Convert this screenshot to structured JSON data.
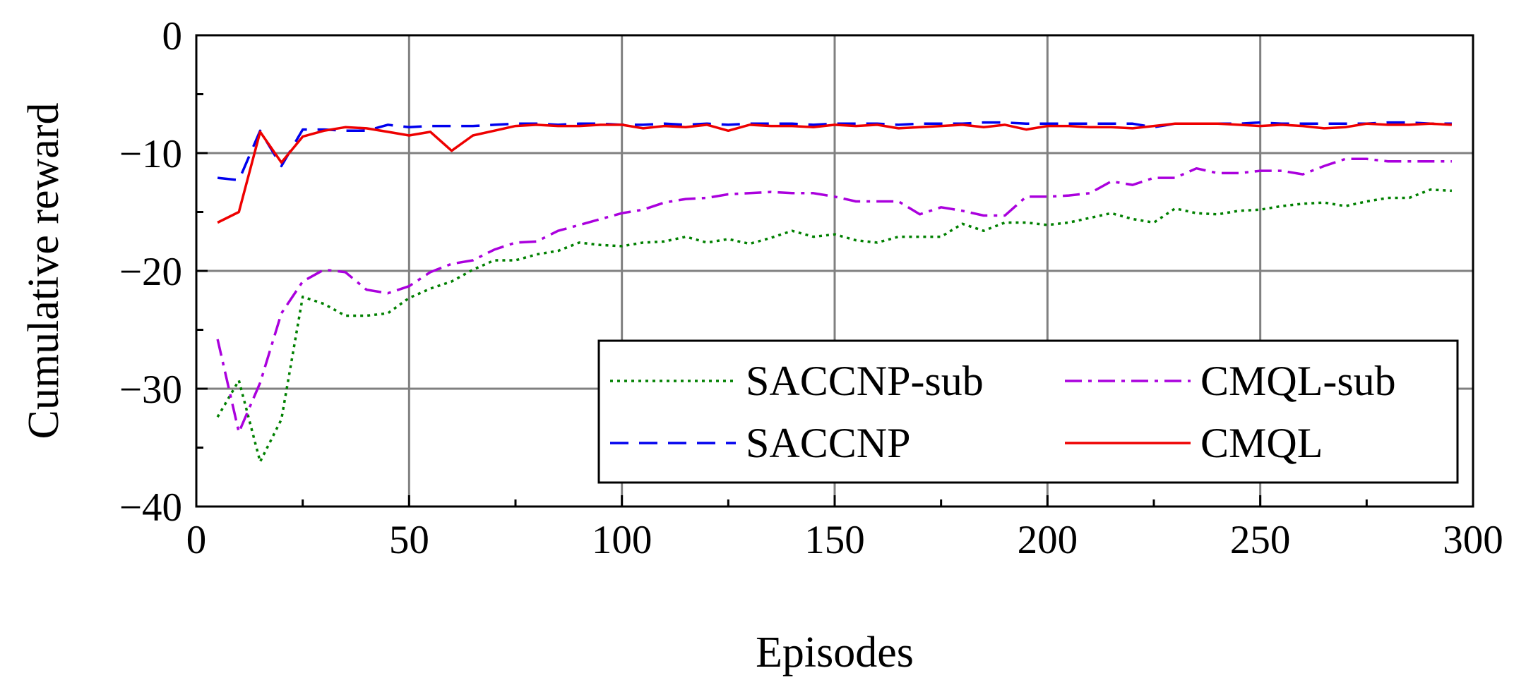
{
  "chart_data": {
    "type": "line",
    "title": "",
    "xlabel": "Episodes",
    "ylabel": "Cumulative reward",
    "xlim": [
      0,
      300
    ],
    "ylim": [
      -40,
      0
    ],
    "xticks": [
      0,
      50,
      100,
      150,
      200,
      250,
      300
    ],
    "yticks": [
      0,
      -10,
      -20,
      -30,
      -40
    ],
    "xtick_labels": [
      "0",
      "50",
      "100",
      "150",
      "200",
      "250",
      "300"
    ],
    "ytick_labels": [
      "0",
      "−10",
      "−20",
      "−30",
      "−40"
    ],
    "grid": true,
    "legend_position": "bottom-right",
    "series": [
      {
        "name": "SACCNP-sub",
        "color": "#008000",
        "style": "dotted",
        "x": [
          5,
          10,
          15,
          20,
          25,
          30,
          35,
          40,
          45,
          50,
          55,
          60,
          65,
          70,
          75,
          80,
          85,
          90,
          95,
          100,
          105,
          110,
          115,
          120,
          125,
          130,
          135,
          140,
          145,
          150,
          155,
          160,
          165,
          170,
          175,
          180,
          185,
          190,
          195,
          200,
          205,
          210,
          215,
          220,
          225,
          230,
          235,
          240,
          245,
          250,
          255,
          260,
          265,
          270,
          275,
          280,
          285,
          290,
          295
        ],
        "y": [
          -32.4,
          -29.3,
          -36.2,
          -32.6,
          -22.2,
          -22.8,
          -23.8,
          -23.8,
          -23.6,
          -22.3,
          -21.5,
          -20.9,
          -19.9,
          -19.1,
          -19.1,
          -18.6,
          -18.3,
          -17.6,
          -17.8,
          -17.9,
          -17.6,
          -17.5,
          -17.1,
          -17.6,
          -17.3,
          -17.7,
          -17.2,
          -16.6,
          -17.1,
          -16.9,
          -17.4,
          -17.6,
          -17.1,
          -17.1,
          -17.1,
          -16.0,
          -16.6,
          -15.9,
          -15.9,
          -16.1,
          -15.9,
          -15.5,
          -15.1,
          -15.6,
          -15.9,
          -14.7,
          -15.1,
          -15.2,
          -14.9,
          -14.8,
          -14.5,
          -14.3,
          -14.2,
          -14.5,
          -14.1,
          -13.8,
          -13.8,
          -13.1,
          -13.2
        ]
      },
      {
        "name": "CMQL-sub",
        "color": "#aa00dd",
        "style": "dashdot",
        "x": [
          5,
          10,
          15,
          20,
          25,
          30,
          35,
          40,
          45,
          50,
          55,
          60,
          65,
          70,
          75,
          80,
          85,
          90,
          95,
          100,
          105,
          110,
          115,
          120,
          125,
          130,
          135,
          140,
          145,
          150,
          155,
          160,
          165,
          170,
          175,
          180,
          185,
          190,
          195,
          200,
          205,
          210,
          215,
          220,
          225,
          230,
          235,
          240,
          245,
          250,
          255,
          260,
          265,
          270,
          275,
          280,
          285,
          290,
          295
        ],
        "y": [
          -25.8,
          -33.7,
          -29.5,
          -23.6,
          -20.9,
          -19.9,
          -20.1,
          -21.6,
          -21.9,
          -21.3,
          -20.1,
          -19.4,
          -19.1,
          -18.2,
          -17.6,
          -17.5,
          -16.6,
          -16.1,
          -15.6,
          -15.1,
          -14.8,
          -14.2,
          -13.9,
          -13.8,
          -13.5,
          -13.4,
          -13.3,
          -13.4,
          -13.4,
          -13.7,
          -14.1,
          -14.1,
          -14.1,
          -15.2,
          -14.6,
          -14.9,
          -15.3,
          -15.3,
          -13.7,
          -13.7,
          -13.6,
          -13.4,
          -12.4,
          -12.7,
          -12.1,
          -12.1,
          -11.3,
          -11.7,
          -11.7,
          -11.5,
          -11.5,
          -11.8,
          -11.1,
          -10.5,
          -10.5,
          -10.7,
          -10.7,
          -10.7,
          -10.7
        ]
      },
      {
        "name": "SACCNP",
        "color": "#0000ee",
        "style": "dashed",
        "x": [
          5,
          10,
          15,
          20,
          25,
          30,
          35,
          40,
          45,
          50,
          55,
          60,
          65,
          70,
          75,
          80,
          85,
          90,
          95,
          100,
          105,
          110,
          115,
          120,
          125,
          130,
          135,
          140,
          145,
          150,
          155,
          160,
          165,
          170,
          175,
          180,
          185,
          190,
          195,
          200,
          205,
          210,
          215,
          220,
          225,
          230,
          235,
          240,
          245,
          250,
          255,
          260,
          265,
          270,
          275,
          280,
          285,
          290,
          295
        ],
        "y": [
          -12.1,
          -12.3,
          -8.1,
          -11.1,
          -8.0,
          -8.0,
          -8.1,
          -8.1,
          -7.6,
          -7.8,
          -7.7,
          -7.7,
          -7.7,
          -7.6,
          -7.5,
          -7.5,
          -7.6,
          -7.5,
          -7.5,
          -7.6,
          -7.6,
          -7.5,
          -7.6,
          -7.5,
          -7.6,
          -7.5,
          -7.5,
          -7.5,
          -7.6,
          -7.5,
          -7.5,
          -7.5,
          -7.6,
          -7.5,
          -7.5,
          -7.5,
          -7.4,
          -7.4,
          -7.5,
          -7.5,
          -7.5,
          -7.5,
          -7.5,
          -7.5,
          -7.8,
          -7.5,
          -7.5,
          -7.5,
          -7.5,
          -7.4,
          -7.5,
          -7.5,
          -7.5,
          -7.5,
          -7.5,
          -7.4,
          -7.4,
          -7.5,
          -7.5
        ]
      },
      {
        "name": "CMQL",
        "color": "#ee0000",
        "style": "solid",
        "x": [
          5,
          10,
          15,
          20,
          25,
          30,
          35,
          40,
          45,
          50,
          55,
          60,
          65,
          70,
          75,
          80,
          85,
          90,
          95,
          100,
          105,
          110,
          115,
          120,
          125,
          130,
          135,
          140,
          145,
          150,
          155,
          160,
          165,
          170,
          175,
          180,
          185,
          190,
          195,
          200,
          205,
          210,
          215,
          220,
          225,
          230,
          235,
          240,
          245,
          250,
          255,
          260,
          265,
          270,
          275,
          280,
          285,
          290,
          295
        ],
        "y": [
          -15.9,
          -15.0,
          -8.2,
          -10.8,
          -8.6,
          -8.1,
          -7.8,
          -7.9,
          -8.2,
          -8.5,
          -8.2,
          -9.8,
          -8.5,
          -8.1,
          -7.7,
          -7.6,
          -7.7,
          -7.7,
          -7.6,
          -7.6,
          -7.9,
          -7.7,
          -7.8,
          -7.6,
          -8.1,
          -7.6,
          -7.7,
          -7.7,
          -7.8,
          -7.6,
          -7.7,
          -7.6,
          -7.9,
          -7.8,
          -7.7,
          -7.6,
          -7.8,
          -7.6,
          -8.0,
          -7.7,
          -7.7,
          -7.8,
          -7.8,
          -7.9,
          -7.7,
          -7.5,
          -7.5,
          -7.5,
          -7.6,
          -7.7,
          -7.6,
          -7.7,
          -7.9,
          -7.8,
          -7.5,
          -7.6,
          -7.6,
          -7.5,
          -7.6
        ]
      }
    ],
    "legend": [
      {
        "label": "SACCNP-sub",
        "series": 0
      },
      {
        "label": "CMQL-sub",
        "series": 1
      },
      {
        "label": "SACCNP",
        "series": 2
      },
      {
        "label": "CMQL",
        "series": 3
      }
    ]
  }
}
